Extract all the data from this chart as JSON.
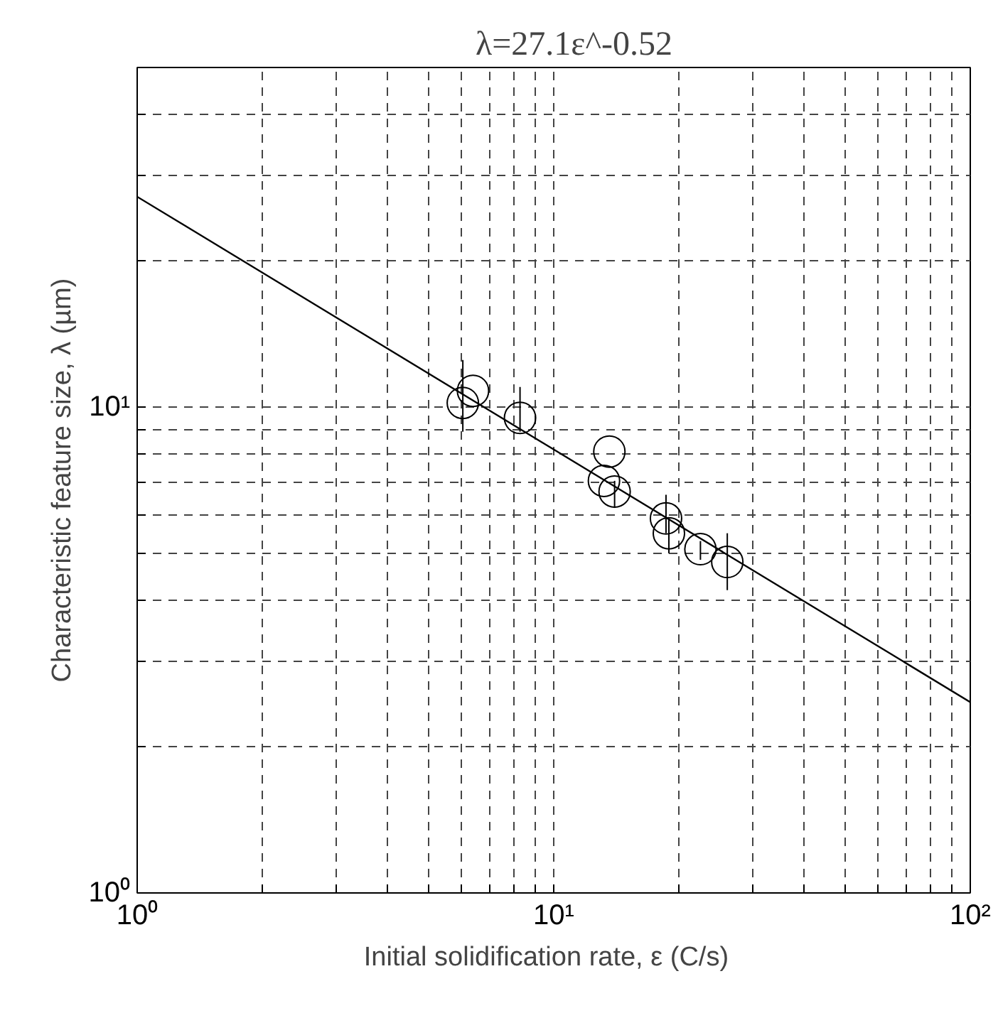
{
  "chart_data": {
    "type": "scatter",
    "title": "λ=27.1ε^-0.52",
    "xlabel": "Initial solidification rate, ε   (C/s)",
    "ylabel": "Characteristic feature size, λ (µm)",
    "log": "xy",
    "grid": true,
    "xlim": [
      1,
      100
    ],
    "ylim": [
      1,
      50
    ],
    "xticks": [
      {
        "value": 1,
        "label": "10⁰"
      },
      {
        "value": 2,
        "label": null
      },
      {
        "value": 3,
        "label": null
      },
      {
        "value": 4,
        "label": null
      },
      {
        "value": 5,
        "label": null
      },
      {
        "value": 6,
        "label": null
      },
      {
        "value": 7,
        "label": null
      },
      {
        "value": 8,
        "label": null
      },
      {
        "value": 9,
        "label": null
      },
      {
        "value": 10,
        "label": "10¹"
      },
      {
        "value": 20,
        "label": null
      },
      {
        "value": 30,
        "label": null
      },
      {
        "value": 40,
        "label": null
      },
      {
        "value": 50,
        "label": null
      },
      {
        "value": 60,
        "label": null
      },
      {
        "value": 70,
        "label": null
      },
      {
        "value": 80,
        "label": null
      },
      {
        "value": 90,
        "label": null
      },
      {
        "value": 100,
        "label": "10²"
      }
    ],
    "yticks": [
      {
        "value": 1,
        "label": "10⁰"
      },
      {
        "value": 2,
        "label": null
      },
      {
        "value": 3,
        "label": null
      },
      {
        "value": 4,
        "label": null
      },
      {
        "value": 5,
        "label": null
      },
      {
        "value": 6,
        "label": null
      },
      {
        "value": 7,
        "label": null
      },
      {
        "value": 8,
        "label": null
      },
      {
        "value": 9,
        "label": null
      },
      {
        "value": 10,
        "label": "10¹"
      },
      {
        "value": 20,
        "label": null
      },
      {
        "value": 30,
        "label": null
      },
      {
        "value": 40,
        "label": null
      }
    ],
    "series": [
      {
        "marker": "circle",
        "color": "#000000",
        "x": [
          6.05,
          6.4,
          8.3,
          13.6,
          13.2,
          14.0,
          18.6,
          18.9,
          22.5,
          26.1
        ],
        "values": [
          10.2,
          10.8,
          9.5,
          8.1,
          7.05,
          6.7,
          5.9,
          5.5,
          5.1,
          4.8
        ],
        "errors": [
          [
            8.9,
            12.5
          ],
          null,
          [
            8.9,
            11.0
          ],
          null,
          null,
          [
            6.2,
            7.05
          ],
          [
            5.5,
            6.6
          ],
          [
            5.0,
            5.9
          ],
          [
            4.85,
            5.3
          ],
          [
            4.2,
            5.5
          ]
        ]
      },
      {
        "type": "line",
        "color": "#000000",
        "x": [
          1,
          100
        ],
        "values": [
          27.1,
          2.47
        ]
      }
    ]
  }
}
